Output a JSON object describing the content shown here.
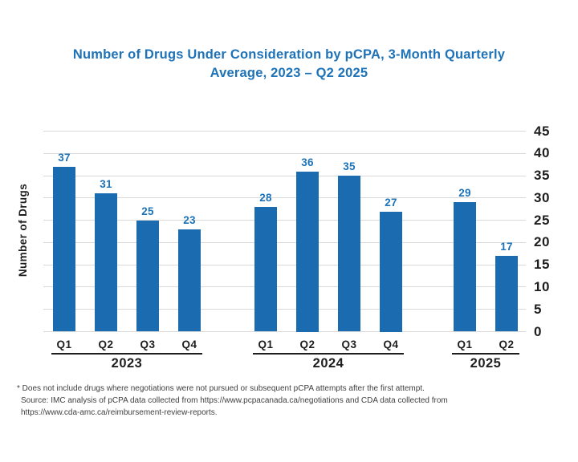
{
  "page": {
    "title_line1": "Number of Drugs Under Consideration by pCPA, 3-Month Quarterly",
    "title_line2": "Average, 2023 – Q2 2025"
  },
  "chart_data": {
    "type": "bar",
    "title": "Number of Drugs Under Consideration by pCPA, 3-Month Quarterly Average, 2023 – Q2 2025",
    "xlabel": "",
    "ylabel": "Number of Drugs",
    "ylim": [
      0,
      45
    ],
    "yticks": [
      0,
      5,
      10,
      15,
      20,
      25,
      30,
      35,
      40,
      45
    ],
    "ytick_side": "right",
    "grid": true,
    "legend": false,
    "groups": [
      {
        "year": "2023",
        "categories": [
          "Q1",
          "Q2",
          "Q3",
          "Q4"
        ],
        "values": [
          37,
          31,
          25,
          23
        ]
      },
      {
        "year": "2024",
        "categories": [
          "Q1",
          "Q2",
          "Q3",
          "Q4"
        ],
        "values": [
          28,
          36,
          35,
          27
        ]
      },
      {
        "year": "2025",
        "categories": [
          "Q1",
          "Q2"
        ],
        "values": [
          29,
          17
        ]
      }
    ]
  },
  "footnote": {
    "line1": "* Does not include drugs where negotiations were not pursued or subsequent pCPA attempts after the first attempt.",
    "line2": "Source: IMC analysis of pCPA data collected from https://www.pcpacanada.ca/negotiations and CDA data collected from",
    "line3": "https://www.cda-amc.ca/reimbursement-review-reports."
  },
  "colors": {
    "bar": "#1B6BB1",
    "accent_blue": "#1D72B8",
    "axis_text": "#1E1E1E",
    "gridline": "#D9D9D9",
    "footnote_text": "#414042"
  }
}
